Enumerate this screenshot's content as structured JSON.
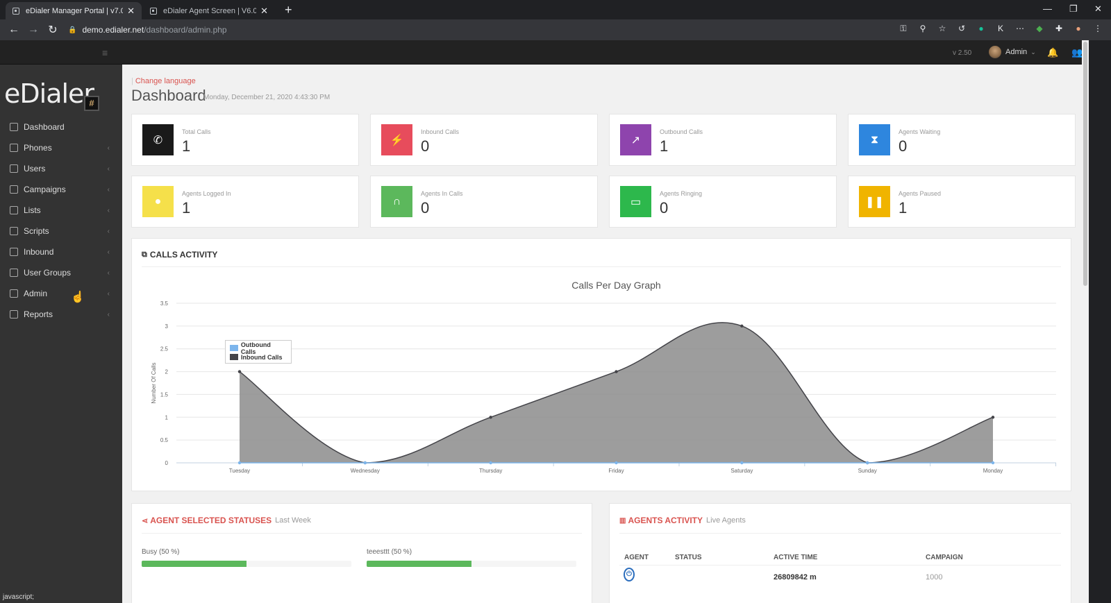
{
  "browser": {
    "tabs": [
      {
        "title": "eDialer Manager Portal | v7.0",
        "active": true
      },
      {
        "title": "eDialer Agent Screen | V6.0",
        "active": false
      }
    ],
    "url_host": "demo.edialer.net",
    "url_path": "/dashboard/admin.php",
    "status_text": "javascript;"
  },
  "topnav": {
    "version": "v 2.50",
    "user": "Admin"
  },
  "logo": {
    "text": "eDialer",
    "badge": "#"
  },
  "sidebar": {
    "items": [
      {
        "label": "Dashboard",
        "icon": "home-icon"
      },
      {
        "label": "Phones",
        "icon": "phone-icon"
      },
      {
        "label": "Users",
        "icon": "user-icon"
      },
      {
        "label": "Campaigns",
        "icon": "flag-icon"
      },
      {
        "label": "Lists",
        "icon": "list-icon"
      },
      {
        "label": "Scripts",
        "icon": "document-icon"
      },
      {
        "label": "Inbound",
        "icon": "diamond-icon"
      },
      {
        "label": "User Groups",
        "icon": "group-icon"
      },
      {
        "label": "Admin",
        "icon": "admin-icon"
      },
      {
        "label": "Reports",
        "icon": "report-icon"
      }
    ]
  },
  "header": {
    "change_language": "Change language",
    "title": "Dashboard",
    "datetime": "Monday, December 21, 2020 4:43:30 PM"
  },
  "stats": [
    {
      "label": "Total Calls",
      "value": "1",
      "color": "#1a1a1a",
      "icon": "phone-icon"
    },
    {
      "label": "Inbound Calls",
      "value": "0",
      "color": "#e74c5c",
      "icon": "plug-icon"
    },
    {
      "label": "Outbound Calls",
      "value": "1",
      "color": "#8e44ad",
      "icon": "external-link-icon"
    },
    {
      "label": "Agents Waiting",
      "value": "0",
      "color": "#2e86de",
      "icon": "hourglass-icon"
    },
    {
      "label": "Agents Logged In",
      "value": "1",
      "color": "#f5e04a",
      "icon": "user-icon"
    },
    {
      "label": "Agents In Calls",
      "value": "0",
      "color": "#5cb85c",
      "icon": "headset-icon"
    },
    {
      "label": "Agents Ringing",
      "value": "0",
      "color": "#2db84c",
      "icon": "monitor-icon"
    },
    {
      "label": "Agents Paused",
      "value": "1",
      "color": "#f0b400",
      "icon": "pause-icon"
    }
  ],
  "calls_activity": {
    "title": "CALLS ACTIVITY"
  },
  "chart_data": {
    "type": "area",
    "title": "Calls Per Day Graph",
    "ylabel": "Number Of Calls",
    "xlabel": "",
    "categories": [
      "Tuesday",
      "Wednesday",
      "Thursday",
      "Friday",
      "Saturday",
      "Sunday",
      "Monday"
    ],
    "series": [
      {
        "name": "Outbound Calls",
        "color": "#7cb5ec",
        "values": [
          0,
          0,
          0,
          0,
          0,
          0,
          0
        ]
      },
      {
        "name": "Inbound Calls",
        "color": "#434348",
        "values": [
          2,
          0,
          1,
          2,
          3,
          0,
          1
        ]
      }
    ],
    "ylim": [
      0,
      3.5
    ],
    "yticks": [
      "0",
      "0.5",
      "1",
      "1.5",
      "2",
      "2.5",
      "3",
      "3.5"
    ],
    "legend": "top-left",
    "grid": true
  },
  "agent_statuses": {
    "title": "AGENT SELECTED STATUSES",
    "subtitle": "Last Week",
    "items": [
      {
        "label": "Busy (50 %)",
        "percent": 50
      },
      {
        "label": "teeesttt (50 %)",
        "percent": 50
      }
    ]
  },
  "agents_activity": {
    "title": "AGENTS ACTIVITY",
    "subtitle": "Live Agents",
    "columns": [
      "AGENT",
      "STATUS",
      "ACTIVE TIME",
      "CAMPAIGN"
    ],
    "rows": [
      {
        "agent_icon": "power-icon",
        "status": "",
        "active_time": "26809842 m",
        "campaign": "1000"
      }
    ]
  }
}
